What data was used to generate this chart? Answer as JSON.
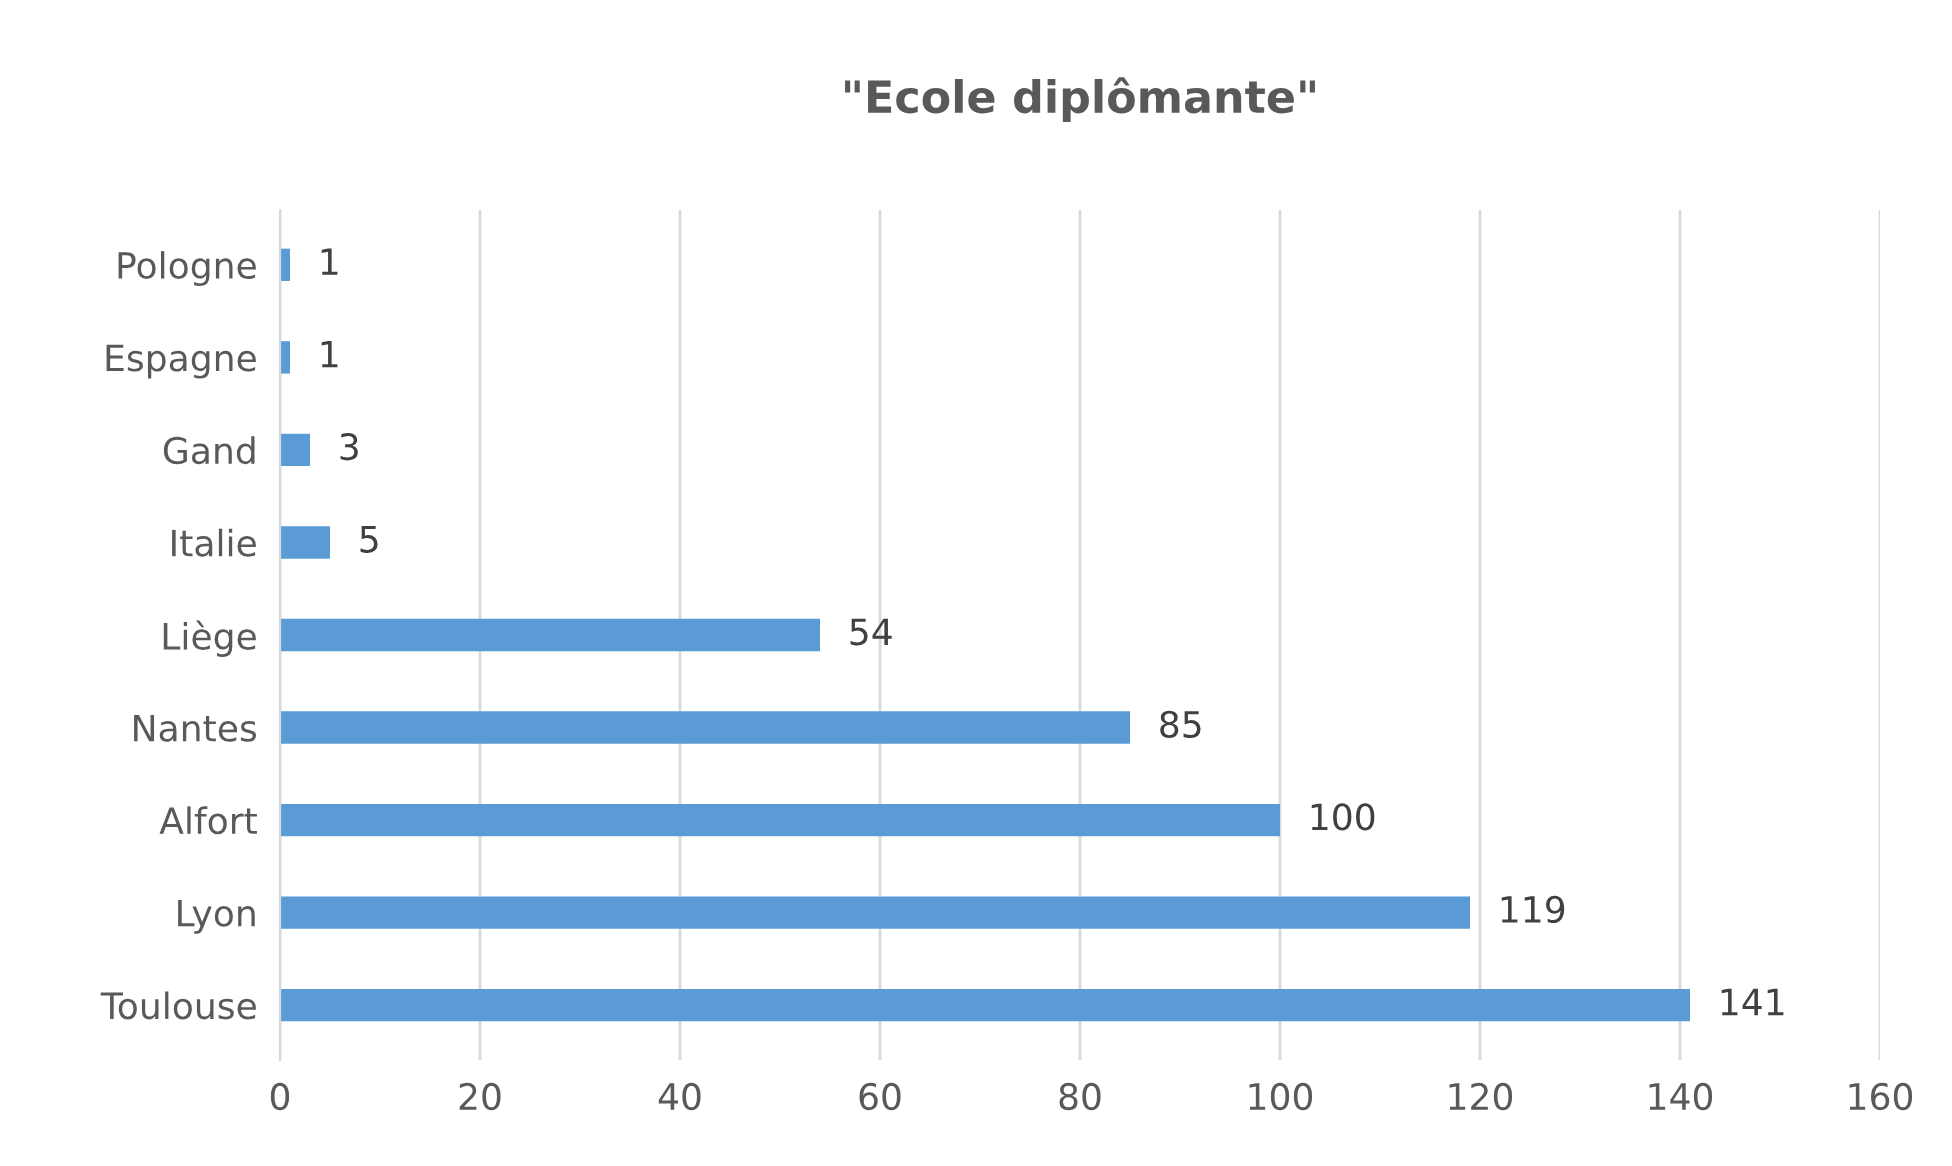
{
  "chart_data": {
    "type": "bar",
    "orientation": "horizontal",
    "title": "\"Ecole diplômante\"",
    "categories": [
      "Pologne",
      "Espagne",
      "Gand",
      "Italie",
      "Liège",
      "Nantes",
      "Alfort",
      "Lyon",
      "Toulouse"
    ],
    "values": [
      1,
      1,
      3,
      5,
      54,
      85,
      100,
      119,
      141
    ],
    "color": "#5b9bd5",
    "xlim": [
      0,
      160
    ],
    "xticks": [
      0,
      20,
      40,
      60,
      80,
      100,
      120,
      140,
      160
    ],
    "grid": "x",
    "data_labels": true
  }
}
